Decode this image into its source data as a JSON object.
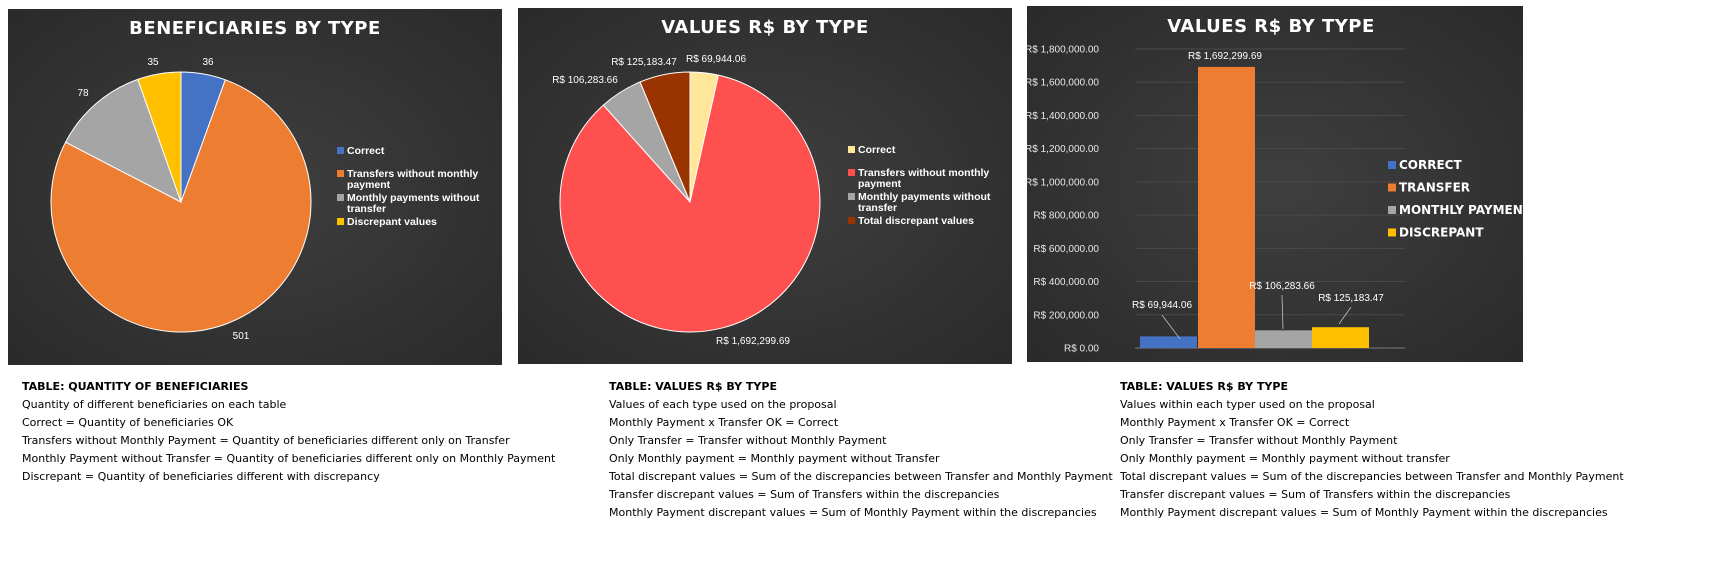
{
  "chart_data": [
    {
      "type": "pie",
      "title": "BENEFICIARIES BY TYPE",
      "slices": [
        {
          "label": "Correct",
          "value": 36,
          "display": "36",
          "color": "#4472C4"
        },
        {
          "label": "Transfers without monthly payment",
          "value": 501,
          "display": "501",
          "color": "#ED7D31"
        },
        {
          "label": "Monthly payments without transfer",
          "value": 78,
          "display": "78",
          "color": "#A5A5A5"
        },
        {
          "label": "Discrepant values",
          "value": 35,
          "display": "35",
          "color": "#FFC000"
        }
      ],
      "legend_lines": [
        [
          "Correct"
        ],
        [
          "Transfers without monthly",
          "payment"
        ],
        [
          "Monthly payments without",
          "transfer"
        ],
        [
          "Discrepant values"
        ]
      ],
      "legend": "right"
    },
    {
      "type": "pie",
      "title": "VALUES R$ BY TYPE",
      "slices": [
        {
          "label": "Correct",
          "value": 69944.06,
          "display": "R$ 69,944.06",
          "color": "#FFE699"
        },
        {
          "label": "Transfers without monthly payment",
          "value": 1692299.69,
          "display": "R$ 1,692,299.69",
          "color": "#FF5050"
        },
        {
          "label": "Monthly payments without transfer",
          "value": 106283.66,
          "display": "R$ 106,283.66",
          "color": "#A5A5A5"
        },
        {
          "label": "Total discrepant values",
          "value": 125183.47,
          "display": "R$ 125,183.47",
          "color": "#993300"
        }
      ],
      "legend_lines": [
        [
          "Correct"
        ],
        [
          "Transfers without monthly",
          "payment"
        ],
        [
          "Monthly payments without",
          "transfer"
        ],
        [
          "Total discrepant values"
        ]
      ],
      "legend": "right"
    },
    {
      "type": "bar",
      "title": "VALUES R$ BY TYPE",
      "categories": [
        "CORRECT",
        "TRANSFER",
        "MONTHLY PAYMENT",
        "DISCREPANT"
      ],
      "values": [
        69944.06,
        1692299.69,
        106283.66,
        125183.47
      ],
      "value_labels": [
        "R$ 69,944.06",
        "R$ 1,692,299.69",
        "R$ 106,283.66",
        "R$ 125,183.47"
      ],
      "colors": [
        "#4472C4",
        "#ED7D31",
        "#A5A5A5",
        "#FFC000"
      ],
      "ylim": [
        0,
        1800000
      ],
      "yticks": [
        {
          "value": 0,
          "label": "R$ 0.00"
        },
        {
          "value": 200000,
          "label": "R$ 200,000.00"
        },
        {
          "value": 400000,
          "label": "R$ 400,000.00"
        },
        {
          "value": 600000,
          "label": "R$ 600,000.00"
        },
        {
          "value": 800000,
          "label": "R$ 800,000.00"
        },
        {
          "value": 1000000,
          "label": "R$ 1,000,000.00"
        },
        {
          "value": 1200000,
          "label": "R$ 1,200,000.00"
        },
        {
          "value": 1400000,
          "label": "R$ 1,400,000.00"
        },
        {
          "value": 1600000,
          "label": "R$ 1,600,000.00"
        },
        {
          "value": 1800000,
          "label": "R$ 1,800,000.00"
        }
      ],
      "legend": "right"
    }
  ],
  "notes": [
    {
      "title": "TABLE: QUANTITY OF BENEFICIARIES",
      "lines": [
        "Quantity of different beneficiaries on each table",
        "Correct = Quantity of beneficiaries OK",
        "Transfers without Monthly Payment = Quantity of beneficiaries different only on Transfer",
        "Monthly Payment without Transfer = Quantity of beneficiaries different only on Monthly Payment",
        "Discrepant = Quantity of beneficiaries different with discrepancy"
      ]
    },
    {
      "title": "TABLE: VALUES R$ BY TYPE",
      "lines": [
        "Values of each type used on the proposal",
        "Monthly Payment x Transfer OK = Correct",
        "Only Transfer = Transfer without Monthly Payment",
        "Only Monthly payment = Monthly payment without Transfer",
        "Total discrepant values = Sum of the discrepancies between Transfer and Monthly Payment",
        "Transfer discrepant values = Sum of Transfers within the discrepancies",
        "Monthly Payment discrepant values = Sum of Monthly Payment within the discrepancies"
      ]
    },
    {
      "title": "TABLE: VALUES R$ BY TYPE",
      "lines": [
        "Values within each typer used on the proposal",
        "Monthly Payment x Transfer OK = Correct",
        "Only Transfer = Transfer without Monthly Payment",
        "Only Monthly payment = Monthly payment without transfer",
        "Total discrepant values = Sum of the discrepancies between Transfer and Monthly Payment",
        "Transfer discrepant values = Sum of Transfers within the discrepancies",
        "Monthly Payment discrepant values = Sum of Monthly Payment within the discrepancies"
      ]
    }
  ]
}
